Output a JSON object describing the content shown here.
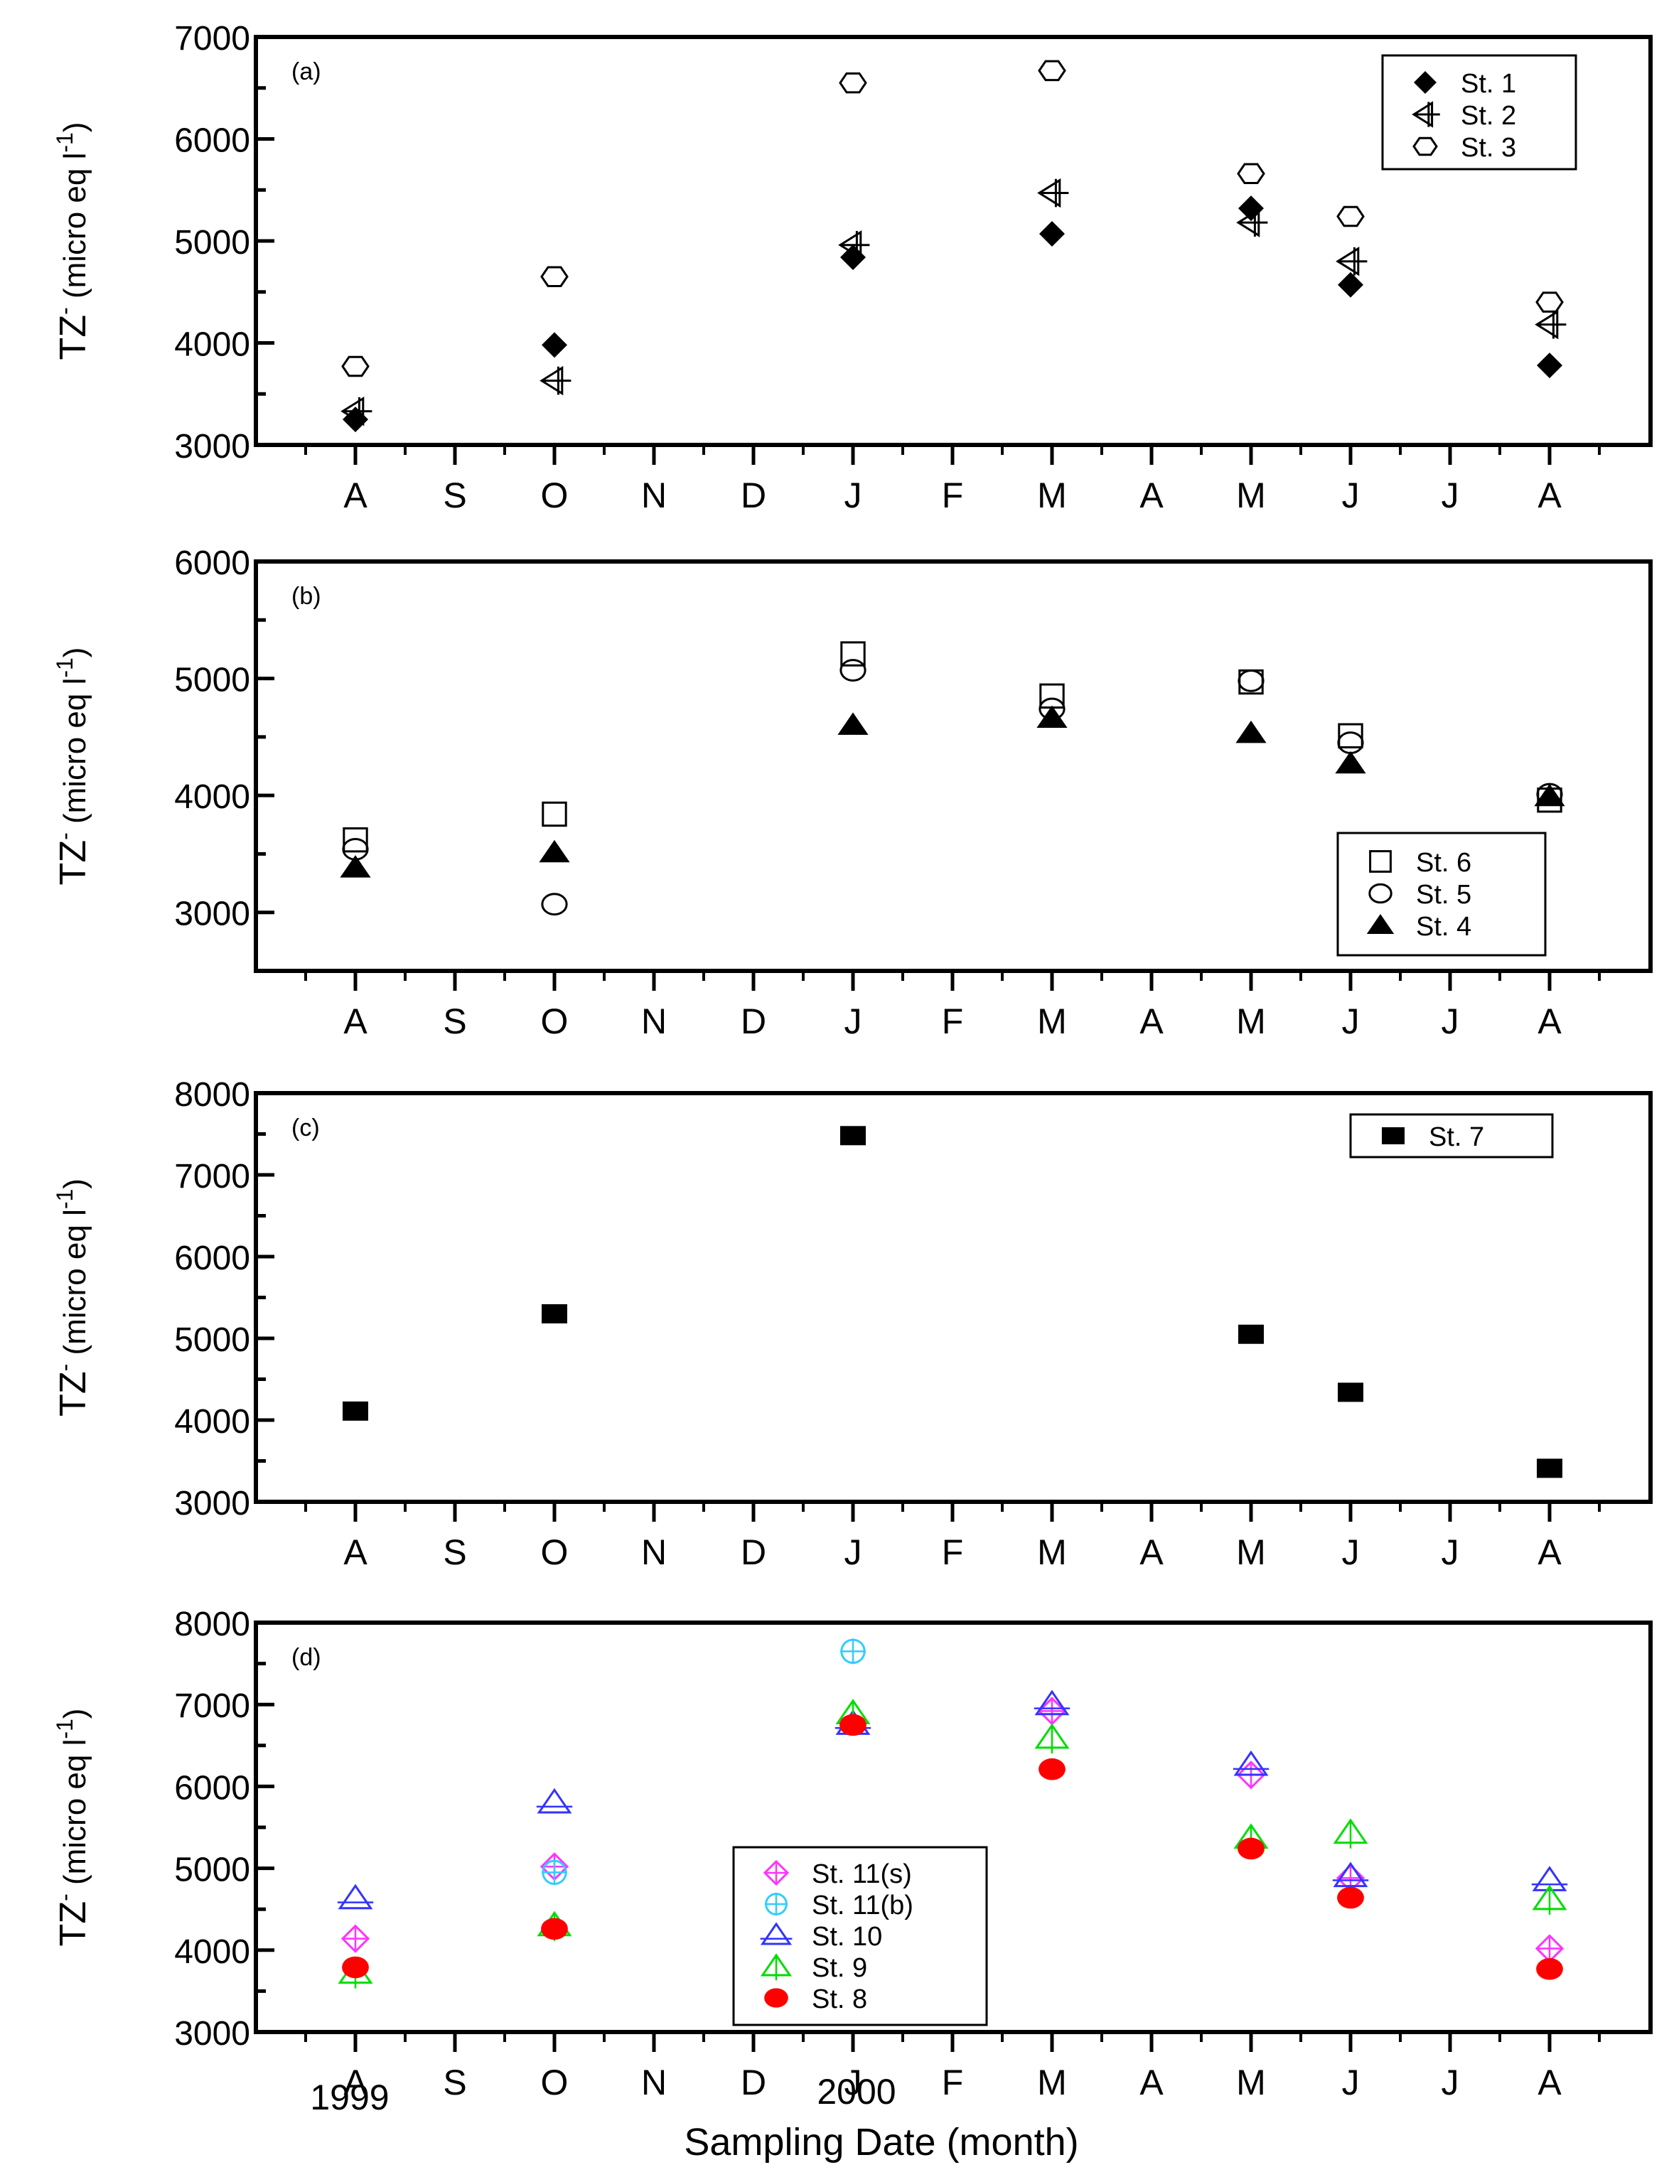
{
  "figure": {
    "xlabel": "Sampling Date (month)",
    "year_labels": [
      "1999",
      "2000"
    ]
  },
  "chart_data": [
    {
      "type": "scatter",
      "panel": "(a)",
      "ylabel": "TZ",
      "ylabel_sup": "-",
      "ylabel_unit": "(micro eq l",
      "ylabel_unit_sup": "-1",
      "ylabel_close": ")",
      "ylim": [
        3000,
        7000
      ],
      "yticks": [
        3000,
        4000,
        5000,
        6000,
        7000
      ],
      "categories": [
        "A",
        "S",
        "O",
        "N",
        "D",
        "J",
        "F",
        "M",
        "A",
        "M",
        "J",
        "J",
        "A"
      ],
      "legend_position": "top-right",
      "series": [
        {
          "name": "St. 1",
          "marker": "diamond-filled",
          "color": "#000000",
          "x": [
            0,
            2,
            5,
            7,
            9,
            10,
            12
          ],
          "values": [
            3250,
            3980,
            4840,
            5070,
            5320,
            4570,
            3780
          ]
        },
        {
          "name": "St. 2",
          "marker": "tri-left-cross",
          "color": "#000000",
          "x": [
            0,
            2,
            5,
            7,
            9,
            10,
            12
          ],
          "values": [
            3330,
            3630,
            4960,
            5470,
            5180,
            4800,
            4180
          ]
        },
        {
          "name": "St. 3",
          "marker": "hexagon-open",
          "color": "#000000",
          "x": [
            0,
            2,
            5,
            7,
            9,
            10,
            12
          ],
          "values": [
            3770,
            4650,
            6550,
            6670,
            5660,
            5240,
            4400
          ]
        }
      ]
    },
    {
      "type": "scatter",
      "panel": "(b)",
      "ylabel": "TZ",
      "ylabel_sup": "-",
      "ylabel_unit": "(micro eq l",
      "ylabel_unit_sup": "-1",
      "ylabel_close": ")",
      "ylim": [
        2500,
        6000
      ],
      "yticks": [
        3000,
        4000,
        5000,
        6000
      ],
      "categories": [
        "A",
        "S",
        "O",
        "N",
        "D",
        "J",
        "F",
        "M",
        "A",
        "M",
        "J",
        "J",
        "A"
      ],
      "legend_position": "bottom-right",
      "series": [
        {
          "name": "St. 6",
          "marker": "square-open",
          "color": "#000000",
          "x": [
            0,
            2,
            5,
            7,
            9,
            10,
            12
          ],
          "values": [
            3620,
            3840,
            5210,
            4850,
            4970,
            4510,
            3960
          ]
        },
        {
          "name": "St. 5",
          "marker": "circle-open",
          "color": "#000000",
          "x": [
            0,
            2,
            5,
            7,
            9,
            10,
            12
          ],
          "values": [
            3540,
            3070,
            5070,
            4740,
            4980,
            4450,
            4010
          ]
        },
        {
          "name": "St. 4",
          "marker": "triangle-filled",
          "color": "#000000",
          "x": [
            0,
            2,
            5,
            7,
            9,
            10,
            12
          ],
          "values": [
            3380,
            3510,
            4600,
            4660,
            4530,
            4270,
            3990
          ]
        }
      ]
    },
    {
      "type": "scatter",
      "panel": "(c)",
      "ylabel": "TZ",
      "ylabel_sup": "-",
      "ylabel_unit": "(micro eq l",
      "ylabel_unit_sup": "-1",
      "ylabel_close": ")",
      "ylim": [
        3000,
        8000
      ],
      "yticks": [
        3000,
        4000,
        5000,
        6000,
        7000,
        8000
      ],
      "categories": [
        "A",
        "S",
        "O",
        "N",
        "D",
        "J",
        "F",
        "M",
        "A",
        "M",
        "J",
        "J",
        "A"
      ],
      "legend_position": "top-right",
      "series": [
        {
          "name": "St. 7",
          "marker": "square-filled",
          "color": "#000000",
          "x": [
            0,
            2,
            5,
            9,
            10,
            12
          ],
          "values": [
            4110,
            5300,
            7480,
            5050,
            4340,
            3410
          ]
        }
      ]
    },
    {
      "type": "scatter",
      "panel": "(d)",
      "ylabel": "TZ",
      "ylabel_sup": "-",
      "ylabel_unit": "(micro eq l",
      "ylabel_unit_sup": "-1",
      "ylabel_close": ")",
      "ylim": [
        3000,
        8000
      ],
      "yticks": [
        3000,
        4000,
        5000,
        6000,
        7000,
        8000
      ],
      "categories": [
        "A",
        "S",
        "O",
        "N",
        "D",
        "J",
        "F",
        "M",
        "A",
        "M",
        "J",
        "J",
        "A"
      ],
      "legend_position": "center",
      "series": [
        {
          "name": "St. 11(s)",
          "marker": "diamond-cross",
          "color": "#ff33ff",
          "x": [
            0,
            2,
            7,
            9,
            10,
            12
          ],
          "values": [
            4140,
            5020,
            6920,
            6140,
            4880,
            4020
          ]
        },
        {
          "name": "St. 11(b)",
          "marker": "circle-cross",
          "color": "#33ccff",
          "x": [
            2,
            5
          ],
          "values": [
            4950,
            7650
          ]
        },
        {
          "name": "St. 10",
          "marker": "triangle-open-bar",
          "color": "#3333ff",
          "x": [
            0,
            2,
            5,
            7,
            9,
            10,
            12
          ],
          "values": [
            4630,
            5800,
            6760,
            7000,
            6260,
            4900,
            4850
          ]
        },
        {
          "name": "St. 9",
          "marker": "triangle-open-stem",
          "color": "#00dd00",
          "x": [
            0,
            2,
            5,
            7,
            9,
            10,
            12
          ],
          "values": [
            3720,
            4300,
            6890,
            6590,
            5370,
            5430,
            4620
          ]
        },
        {
          "name": "St. 8",
          "marker": "ellipse-filled",
          "color": "#ff0000",
          "x": [
            0,
            2,
            5,
            7,
            9,
            10,
            12
          ],
          "values": [
            3790,
            4260,
            6750,
            6210,
            5240,
            4640,
            3770
          ]
        }
      ]
    }
  ]
}
